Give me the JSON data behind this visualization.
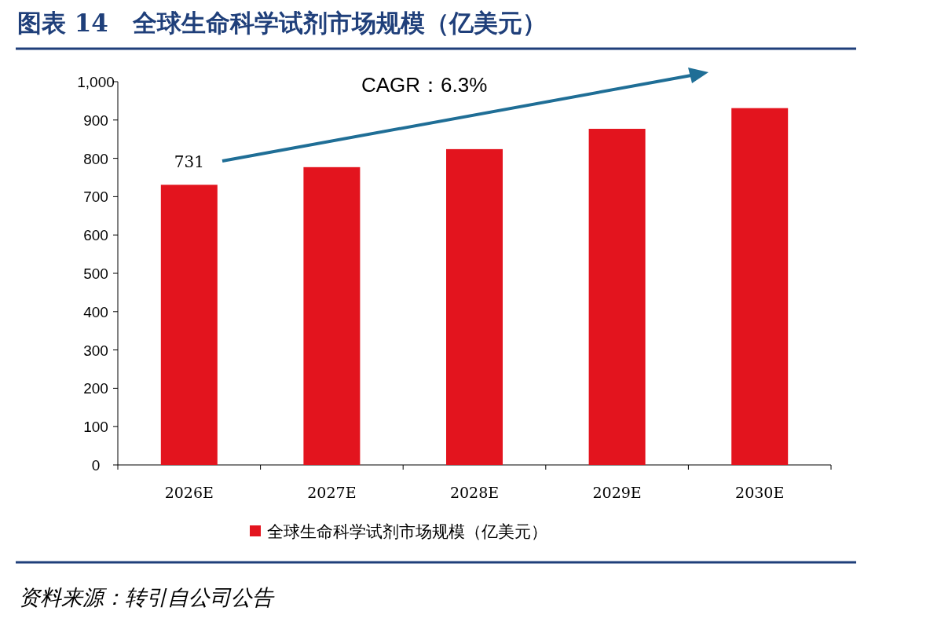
{
  "chart_data": {
    "type": "bar",
    "title": "图表 14　全球生命科学试剂市场规模（亿美元）",
    "categories": [
      "2026E",
      "2027E",
      "2028E",
      "2029E",
      "2030E"
    ],
    "series": [
      {
        "name": "全球生命科学试剂市场规模（亿美元）",
        "color": "#e3141e",
        "values": [
          731,
          777,
          824,
          877,
          931
        ],
        "value_labels": [
          "731",
          null,
          null,
          null,
          null
        ]
      }
    ],
    "ylim": [
      0,
      1000
    ],
    "yticks": [
      0,
      100,
      200,
      300,
      400,
      500,
      600,
      700,
      800,
      900,
      {
        "value": 1000,
        "label": "1,000"
      }
    ],
    "grid": false,
    "legend": "bottom",
    "annotations": [
      "CAGR：6.3%",
      "资料来源：转引自公司公告"
    ]
  }
}
